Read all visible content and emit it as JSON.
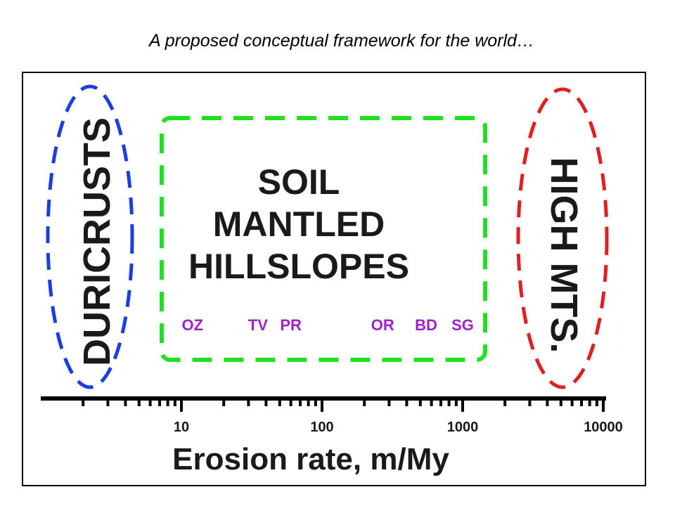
{
  "title": "A proposed conceptual framework for the world…",
  "regions": {
    "duricrusts": {
      "label": "DURICRUSTS",
      "color": "#1a3ee6"
    },
    "soil": {
      "lines": [
        "SOIL",
        "MANTLED",
        "HILLSLOPES"
      ],
      "color": "#22e022"
    },
    "high_mts": {
      "label": "HIGH MTS.",
      "color": "#e02020"
    }
  },
  "sites": {
    "color": "#a020d0",
    "items": [
      {
        "code": "OZ",
        "erosion_rate": 12
      },
      {
        "code": "TV",
        "erosion_rate": 35
      },
      {
        "code": "PR",
        "erosion_rate": 60
      },
      {
        "code": "OR",
        "erosion_rate": 270
      },
      {
        "code": "BD",
        "erosion_rate": 550
      },
      {
        "code": "SG",
        "erosion_rate": 1000
      }
    ]
  },
  "axis": {
    "label": "Erosion rate, m/My",
    "scale": "log",
    "range": [
      1,
      10000
    ],
    "ticks": [
      "10",
      "100",
      "1000",
      "10000"
    ]
  }
}
